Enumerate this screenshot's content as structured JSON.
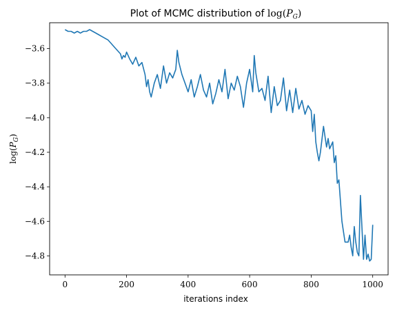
{
  "chart_data": {
    "type": "line",
    "title": "Plot of MCMC distribution of log(P_G)",
    "title_prefix": "Plot of MCMC distribution of ",
    "xlabel": "iterations index",
    "ylabel": "log(P_G)",
    "xlim": [
      -50,
      1050
    ],
    "ylim": [
      -4.91,
      -3.45
    ],
    "xticks": [
      0,
      200,
      400,
      600,
      800,
      1000
    ],
    "yticks": [
      -3.6,
      -3.8,
      -4.0,
      -4.2,
      -4.4,
      -4.6,
      -4.8
    ],
    "xtick_labels": [
      "0",
      "200",
      "400",
      "600",
      "800",
      "1000"
    ],
    "ytick_labels": [
      "−3.6",
      "−3.8",
      "−4.0",
      "−4.2",
      "−4.4",
      "−4.6",
      "−4.8"
    ],
    "grid": false,
    "series": [
      {
        "color": "#1f77b4",
        "x": [
          0,
          10,
          20,
          30,
          40,
          50,
          60,
          70,
          80,
          90,
          100,
          110,
          120,
          130,
          140,
          150,
          160,
          170,
          180,
          185,
          190,
          195,
          200,
          210,
          220,
          230,
          240,
          250,
          260,
          265,
          270,
          275,
          280,
          290,
          300,
          310,
          320,
          330,
          340,
          350,
          360,
          365,
          370,
          380,
          390,
          400,
          410,
          420,
          430,
          440,
          450,
          460,
          470,
          480,
          490,
          500,
          510,
          520,
          530,
          540,
          550,
          560,
          570,
          580,
          590,
          600,
          610,
          615,
          620,
          630,
          640,
          650,
          660,
          670,
          680,
          690,
          700,
          710,
          720,
          730,
          740,
          750,
          760,
          770,
          780,
          790,
          800,
          805,
          810,
          815,
          820,
          825,
          830,
          840,
          850,
          855,
          860,
          870,
          875,
          880,
          885,
          890,
          900,
          910,
          920,
          925,
          930,
          935,
          940,
          945,
          950,
          955,
          960,
          970,
          975,
          980,
          985,
          990,
          995,
          1000
        ],
        "y": [
          -3.49,
          -3.5,
          -3.5,
          -3.51,
          -3.5,
          -3.51,
          -3.5,
          -3.5,
          -3.49,
          -3.5,
          -3.51,
          -3.52,
          -3.53,
          -3.54,
          -3.55,
          -3.57,
          -3.59,
          -3.61,
          -3.63,
          -3.66,
          -3.64,
          -3.65,
          -3.62,
          -3.66,
          -3.69,
          -3.65,
          -3.7,
          -3.68,
          -3.75,
          -3.82,
          -3.78,
          -3.85,
          -3.88,
          -3.8,
          -3.75,
          -3.83,
          -3.7,
          -3.8,
          -3.74,
          -3.77,
          -3.72,
          -3.61,
          -3.68,
          -3.75,
          -3.8,
          -3.85,
          -3.78,
          -3.88,
          -3.82,
          -3.75,
          -3.84,
          -3.88,
          -3.8,
          -3.92,
          -3.86,
          -3.78,
          -3.85,
          -3.72,
          -3.89,
          -3.8,
          -3.84,
          -3.76,
          -3.82,
          -3.94,
          -3.8,
          -3.72,
          -3.85,
          -3.64,
          -3.74,
          -3.85,
          -3.83,
          -3.9,
          -3.76,
          -3.97,
          -3.82,
          -3.93,
          -3.9,
          -3.77,
          -3.96,
          -3.84,
          -3.97,
          -3.83,
          -3.95,
          -3.9,
          -3.98,
          -3.93,
          -3.96,
          -4.08,
          -3.98,
          -4.14,
          -4.2,
          -4.25,
          -4.2,
          -4.05,
          -4.17,
          -4.12,
          -4.18,
          -4.14,
          -4.26,
          -4.22,
          -4.38,
          -4.36,
          -4.6,
          -4.72,
          -4.72,
          -4.68,
          -4.75,
          -4.8,
          -4.63,
          -4.72,
          -4.78,
          -4.8,
          -4.45,
          -4.82,
          -4.68,
          -4.82,
          -4.79,
          -4.83,
          -4.82,
          -4.62
        ]
      }
    ]
  }
}
